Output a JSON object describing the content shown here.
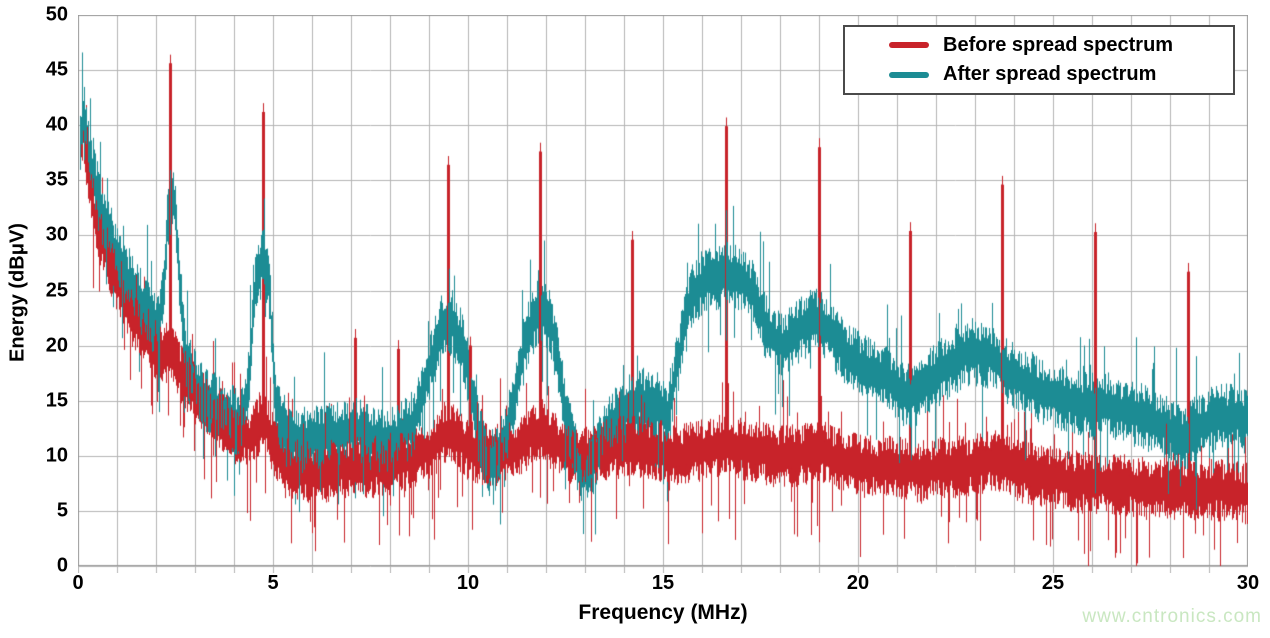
{
  "watermark": "www.cntronics.com",
  "chart_data": {
    "type": "line",
    "subtype": "noisy-emission-spectrum",
    "title": "",
    "xlabel": "Frequency (MHz)",
    "ylabel": "Energy (dBμV)",
    "xlim": [
      0,
      30
    ],
    "ylim": [
      0,
      50
    ],
    "x_major_ticks": [
      0,
      5,
      10,
      15,
      20,
      25,
      30
    ],
    "x_minor_step": 1,
    "y_ticks": [
      0,
      5,
      10,
      15,
      20,
      25,
      30,
      35,
      40,
      45,
      50
    ],
    "grid": {
      "on": true,
      "color": "#b4b4b4",
      "border_color": "#9a9a9a",
      "x_step_mhz": 1,
      "y_step_db": 5
    },
    "legend": {
      "position": "top-right",
      "border_color": "#4a4a4a"
    },
    "noise_seed": 1337,
    "series": [
      {
        "name": "Before spread spectrum",
        "color": "#c8232a",
        "band_halfwidth_db": 2.6,
        "band_mid": [
          [
            0.05,
            38
          ],
          [
            0.12,
            40
          ],
          [
            0.25,
            35.5
          ],
          [
            0.4,
            32
          ],
          [
            0.6,
            29.5
          ],
          [
            0.85,
            27
          ],
          [
            1.1,
            25
          ],
          [
            1.4,
            22.5
          ],
          [
            1.7,
            21
          ],
          [
            2.0,
            19.5
          ],
          [
            2.2,
            19
          ],
          [
            2.37,
            20
          ],
          [
            2.6,
            17.5
          ],
          [
            2.9,
            16
          ],
          [
            3.2,
            15
          ],
          [
            3.6,
            13.5
          ],
          [
            4.0,
            12
          ],
          [
            4.4,
            11.5
          ],
          [
            4.74,
            13.5
          ],
          [
            5.0,
            11
          ],
          [
            5.3,
            9
          ],
          [
            5.8,
            8.5
          ],
          [
            6.3,
            8.5
          ],
          [
            7.0,
            9
          ],
          [
            7.7,
            9
          ],
          [
            8.3,
            9.5
          ],
          [
            9.0,
            10.5
          ],
          [
            9.5,
            12.5
          ],
          [
            10.0,
            10.5
          ],
          [
            10.6,
            10
          ],
          [
            11.2,
            10.5
          ],
          [
            11.85,
            12.5
          ],
          [
            12.4,
            10.5
          ],
          [
            13.0,
            10
          ],
          [
            13.6,
            10.5
          ],
          [
            14.2,
            11
          ],
          [
            14.8,
            10.5
          ],
          [
            15.4,
            10
          ],
          [
            16.0,
            10.5
          ],
          [
            16.6,
            11
          ],
          [
            17.2,
            10.5
          ],
          [
            17.8,
            10
          ],
          [
            18.4,
            10
          ],
          [
            19.0,
            10.5
          ],
          [
            19.6,
            9.5
          ],
          [
            20.2,
            9
          ],
          [
            21.0,
            9
          ],
          [
            21.6,
            8.5
          ],
          [
            22.2,
            9
          ],
          [
            22.8,
            9
          ],
          [
            23.4,
            9.5
          ],
          [
            23.7,
            9.5
          ],
          [
            24.2,
            8.5
          ],
          [
            25.0,
            8
          ],
          [
            25.8,
            7.5
          ],
          [
            26.6,
            7.5
          ],
          [
            27.4,
            7
          ],
          [
            28.2,
            7
          ],
          [
            29.0,
            7
          ],
          [
            30,
            6.5
          ]
        ],
        "harmonic_spikes": [
          [
            2.37,
            46.4
          ],
          [
            4.74,
            42.0
          ],
          [
            7.1,
            21.5
          ],
          [
            8.2,
            20.5
          ],
          [
            9.48,
            37.2
          ],
          [
            10.05,
            20.8
          ],
          [
            11.85,
            38.4
          ],
          [
            14.2,
            30.4
          ],
          [
            16.62,
            40.7
          ],
          [
            19.0,
            38.8
          ],
          [
            21.33,
            31.2
          ],
          [
            23.7,
            35.4
          ],
          [
            26.07,
            31.1
          ],
          [
            28.45,
            27.5
          ]
        ]
      },
      {
        "name": "After spread spectrum",
        "color": "#1c8c94",
        "band_halfwidth_db": 2.8,
        "band_mid": [
          [
            0.05,
            39
          ],
          [
            0.15,
            41
          ],
          [
            0.3,
            37
          ],
          [
            0.5,
            33.5
          ],
          [
            0.7,
            31
          ],
          [
            0.95,
            28.5
          ],
          [
            1.2,
            26.5
          ],
          [
            1.5,
            24.5
          ],
          [
            1.8,
            23
          ],
          [
            2.05,
            21.5
          ],
          [
            2.2,
            25
          ],
          [
            2.3,
            32
          ],
          [
            2.45,
            33.5
          ],
          [
            2.6,
            26
          ],
          [
            2.75,
            18.5
          ],
          [
            3.0,
            16.5
          ],
          [
            3.3,
            15
          ],
          [
            3.7,
            14
          ],
          [
            4.1,
            13
          ],
          [
            4.35,
            16
          ],
          [
            4.55,
            26
          ],
          [
            4.75,
            28
          ],
          [
            4.9,
            25
          ],
          [
            5.05,
            15
          ],
          [
            5.25,
            12
          ],
          [
            5.6,
            11.5
          ],
          [
            6.1,
            11.5
          ],
          [
            6.6,
            12
          ],
          [
            7.1,
            12.5
          ],
          [
            7.6,
            11.5
          ],
          [
            8.1,
            11.5
          ],
          [
            8.6,
            13
          ],
          [
            9.0,
            18
          ],
          [
            9.35,
            22
          ],
          [
            9.6,
            22
          ],
          [
            9.9,
            19.5
          ],
          [
            10.2,
            13
          ],
          [
            10.5,
            9
          ],
          [
            10.8,
            10
          ],
          [
            11.1,
            14
          ],
          [
            11.5,
            21
          ],
          [
            11.85,
            23.5
          ],
          [
            12.15,
            21.5
          ],
          [
            12.5,
            14
          ],
          [
            12.8,
            9
          ],
          [
            13.1,
            8.5
          ],
          [
            13.5,
            12
          ],
          [
            13.9,
            14
          ],
          [
            14.4,
            15
          ],
          [
            14.9,
            14.5
          ],
          [
            15.1,
            13.5
          ],
          [
            15.4,
            19
          ],
          [
            15.7,
            24.5
          ],
          [
            16.1,
            26
          ],
          [
            16.6,
            26.5
          ],
          [
            17.0,
            26
          ],
          [
            17.35,
            24.5
          ],
          [
            17.7,
            21
          ],
          [
            18.1,
            20
          ],
          [
            18.5,
            21.5
          ],
          [
            18.9,
            22.5
          ],
          [
            19.3,
            21
          ],
          [
            19.7,
            19
          ],
          [
            20.2,
            18
          ],
          [
            20.7,
            17
          ],
          [
            21.2,
            15.5
          ],
          [
            21.5,
            15.5
          ],
          [
            21.9,
            17
          ],
          [
            22.4,
            18.5
          ],
          [
            22.9,
            19.5
          ],
          [
            23.4,
            19
          ],
          [
            23.9,
            17.5
          ],
          [
            24.4,
            16.5
          ],
          [
            24.9,
            15.5
          ],
          [
            25.4,
            15
          ],
          [
            25.9,
            14.5
          ],
          [
            26.4,
            14.5
          ],
          [
            26.9,
            14
          ],
          [
            27.4,
            13.5
          ],
          [
            27.9,
            12.5
          ],
          [
            28.3,
            11.5
          ],
          [
            28.7,
            12.5
          ],
          [
            29.2,
            13.5
          ],
          [
            29.7,
            13.5
          ],
          [
            30,
            13
          ]
        ],
        "harmonic_spikes": []
      }
    ]
  }
}
